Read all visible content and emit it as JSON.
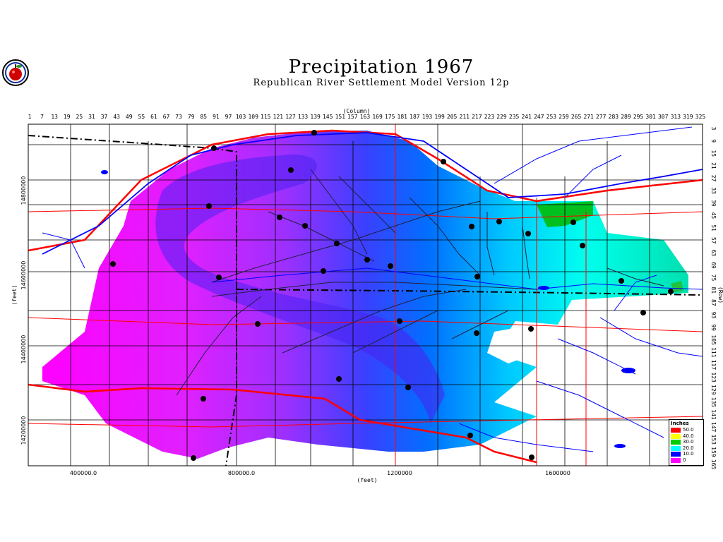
{
  "header": {
    "title": "Precipitation 1967",
    "subtitle": "Republican River Settlement Model Version 12p"
  },
  "axes": {
    "column_label": "(Column)",
    "row_label": "(Row)",
    "x_label": "(feet)",
    "y_label": "(feet)",
    "column_ticks": [
      "1",
      "7",
      "13",
      "19",
      "25",
      "31",
      "37",
      "43",
      "49",
      "55",
      "61",
      "67",
      "73",
      "79",
      "85",
      "91",
      "97",
      "103",
      "109",
      "115",
      "121",
      "127",
      "133",
      "139",
      "145",
      "151",
      "157",
      "163",
      "169",
      "175",
      "181",
      "187",
      "193",
      "199",
      "205",
      "211",
      "217",
      "223",
      "229",
      "235",
      "241",
      "247",
      "253",
      "259",
      "265",
      "271",
      "277",
      "283",
      "289",
      "295",
      "301",
      "307",
      "313",
      "319",
      "325"
    ],
    "row_ticks": [
      "3",
      "9",
      "15",
      "21",
      "27",
      "33",
      "39",
      "45",
      "51",
      "57",
      "63",
      "69",
      "75",
      "81",
      "87",
      "93",
      "99",
      "105",
      "111",
      "117",
      "123",
      "129",
      "135",
      "141",
      "147",
      "153",
      "159",
      "165"
    ],
    "x_ticks": [
      "400000.0",
      "800000.0",
      "1200000",
      "1600000"
    ],
    "y_ticks": [
      "14800000",
      "14600000",
      "14400000",
      "14200000"
    ]
  },
  "legend": {
    "title": "Inches",
    "items": [
      {
        "label": "50.0",
        "color": "#ff0000"
      },
      {
        "label": "40.0",
        "color": "#ffff00"
      },
      {
        "label": "30.0",
        "color": "#00cc00"
      },
      {
        "label": "20.0",
        "color": "#00ffff"
      },
      {
        "label": "10.0",
        "color": "#0000ff"
      },
      {
        "label": "0",
        "color": "#ff00ff"
      }
    ]
  },
  "colors": {
    "background": "#ffffff",
    "rivers": "#0000ff",
    "roads": "#ff0000",
    "state_border": "#000000"
  },
  "logo_icon": "apple-logo-icon",
  "stations_icon": "station-dot-icon"
}
